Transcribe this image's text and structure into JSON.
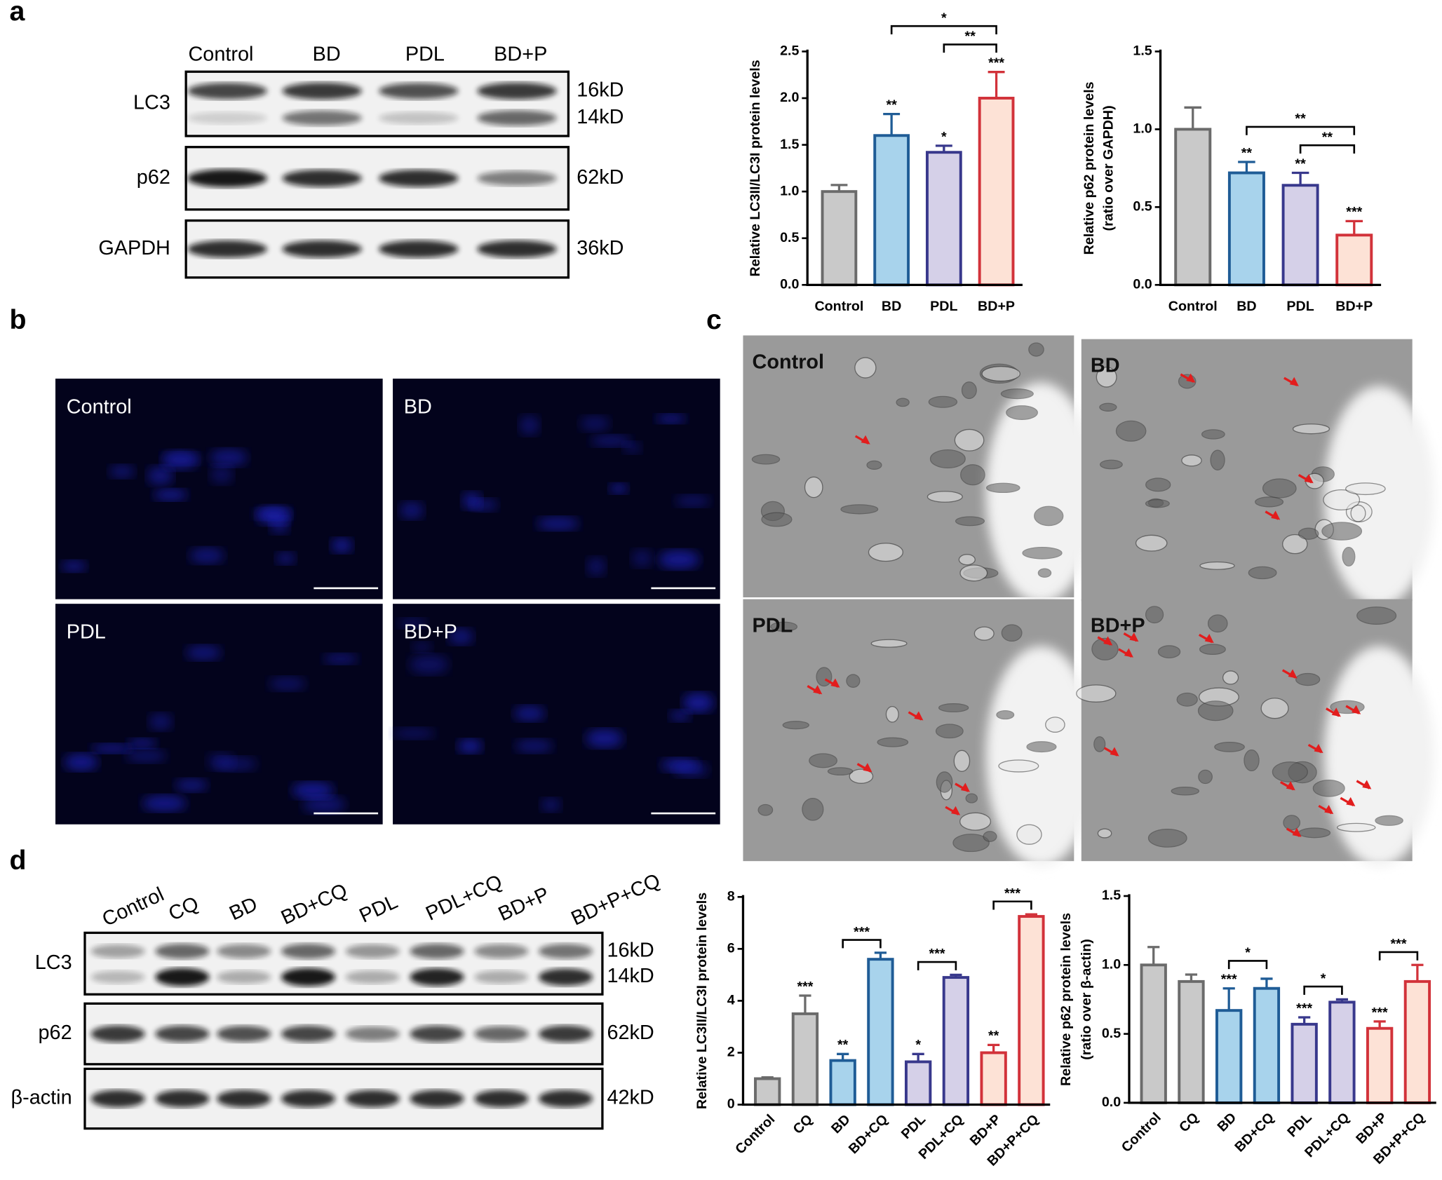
{
  "panels": {
    "a": {
      "label": "a",
      "lanes": [
        "Control",
        "BD",
        "PDL",
        "BD+P"
      ],
      "rows": [
        {
          "name": "LC3",
          "sizes": [
            "16kD",
            "14kD"
          ]
        },
        {
          "name": "p62",
          "sizes": [
            "62kD"
          ]
        },
        {
          "name": "GAPDH",
          "sizes": [
            "36kD"
          ]
        }
      ]
    },
    "b": {
      "label": "b",
      "images": [
        "Control",
        "BD",
        "PDL",
        "BD+P"
      ]
    },
    "c": {
      "label": "c",
      "images": [
        "Control",
        "BD",
        "PDL",
        "BD+P"
      ]
    },
    "d": {
      "label": "d",
      "lanes": [
        "Control",
        "CQ",
        "BD",
        "BD+CQ",
        "PDL",
        "PDL+CQ",
        "BD+P",
        "BD+P+CQ"
      ],
      "rows": [
        {
          "name": "LC3",
          "sizes": [
            "16kD",
            "14kD"
          ]
        },
        {
          "name": "p62",
          "sizes": [
            "62kD"
          ]
        },
        {
          "name": "β-actin",
          "sizes": [
            "42kD"
          ]
        }
      ]
    }
  },
  "chart_data": [
    {
      "type": "bar",
      "ylabel": [
        "Relative LC3II/LC3I protein levels"
      ],
      "categories": [
        "Control",
        "BD",
        "PDL",
        "BD+P"
      ],
      "values": [
        1.0,
        1.6,
        1.42,
        2.0
      ],
      "errors": [
        0.07,
        0.23,
        0.07,
        0.28
      ],
      "stars": [
        null,
        "**",
        "*",
        "***"
      ],
      "brackets": [
        {
          "between": [
            "PDL",
            "BD+P"
          ],
          "label": "**"
        },
        {
          "between": [
            "BD",
            "BD+P"
          ],
          "label": "*"
        }
      ],
      "colors": [
        "#c9c9c9",
        "#a8d3ec",
        "#d5d0e8",
        "#fde2d6"
      ],
      "edge_colors": [
        "#6b6b6b",
        "#1f5c96",
        "#38388c",
        "#d2323a"
      ],
      "ylim": [
        0,
        2.5
      ],
      "yticks": [
        {
          "value": 0,
          "label": "0.0"
        },
        0.5,
        {
          "value": 1,
          "label": "1.0"
        },
        1.5,
        {
          "value": 2,
          "label": "2.0"
        },
        2.5
      ],
      "xtick_rotation": 0
    },
    {
      "type": "bar",
      "ylabel": [
        "Relative p62 protein levels",
        "(ratio over GAPDH)"
      ],
      "categories": [
        "Control",
        "BD",
        "PDL",
        "BD+P"
      ],
      "values": [
        1.0,
        0.72,
        0.64,
        0.32
      ],
      "errors": [
        0.14,
        0.07,
        0.08,
        0.09
      ],
      "stars": [
        null,
        "**",
        "**",
        "***"
      ],
      "brackets": [
        {
          "between": [
            "PDL",
            "BD+P"
          ],
          "label": "**"
        },
        {
          "between": [
            "BD",
            "BD+P"
          ],
          "label": "**"
        }
      ],
      "colors": [
        "#c9c9c9",
        "#a8d3ec",
        "#d5d0e8",
        "#fde2d6"
      ],
      "edge_colors": [
        "#6b6b6b",
        "#1f5c96",
        "#38388c",
        "#d2323a"
      ],
      "ylim": [
        0,
        1.5
      ],
      "yticks": [
        {
          "value": 0,
          "label": "0.0"
        },
        0.5,
        {
          "value": 1,
          "label": "1.0"
        },
        1.5
      ],
      "xtick_rotation": 0
    },
    {
      "type": "bar",
      "ylabel": [
        "Relative LC3II/LC3I protein levels"
      ],
      "categories": [
        "Control",
        "CQ",
        "BD",
        "BD+CQ",
        "PDL",
        "PDL+CQ",
        "BD+P",
        "BD+P+CQ"
      ],
      "values": [
        1.0,
        3.5,
        1.7,
        5.6,
        1.65,
        4.9,
        2.0,
        7.25
      ],
      "errors": [
        0.05,
        0.7,
        0.25,
        0.25,
        0.3,
        0.1,
        0.3,
        0.08
      ],
      "stars": [
        null,
        "***",
        "**",
        null,
        "*",
        null,
        "**",
        null
      ],
      "brackets": [
        {
          "between": [
            "BD",
            "BD+CQ"
          ],
          "label": "***"
        },
        {
          "between": [
            "PDL",
            "PDL+CQ"
          ],
          "label": "***"
        },
        {
          "between": [
            "BD+P",
            "BD+P+CQ"
          ],
          "label": "***"
        }
      ],
      "colors": [
        "#c9c9c9",
        "#c9c9c9",
        "#a8d3ec",
        "#a8d3ec",
        "#d5d0e8",
        "#d5d0e8",
        "#fde2d6",
        "#fde2d6"
      ],
      "edge_colors": [
        "#6b6b6b",
        "#6b6b6b",
        "#1f5c96",
        "#1f5c96",
        "#38388c",
        "#38388c",
        "#d2323a",
        "#d2323a"
      ],
      "ylim": [
        0,
        8
      ],
      "yticks": [
        0,
        2,
        4,
        6,
        8
      ],
      "xtick_rotation": 45
    },
    {
      "type": "bar",
      "ylabel": [
        "Relative p62 protein levels",
        "(ratio over β-actin)"
      ],
      "categories": [
        "Control",
        "CQ",
        "BD",
        "BD+CQ",
        "PDL",
        "PDL+CQ",
        "BD+P",
        "BD+P+CQ"
      ],
      "values": [
        1.0,
        0.88,
        0.67,
        0.83,
        0.57,
        0.73,
        0.54,
        0.88
      ],
      "errors": [
        0.13,
        0.05,
        0.16,
        0.07,
        0.05,
        0.02,
        0.05,
        0.12
      ],
      "stars": [
        null,
        null,
        "***",
        null,
        "***",
        null,
        "***",
        null
      ],
      "brackets": [
        {
          "between": [
            "BD",
            "BD+CQ"
          ],
          "label": "*"
        },
        {
          "between": [
            "PDL",
            "PDL+CQ"
          ],
          "label": "*"
        },
        {
          "between": [
            "BD+P",
            "BD+P+CQ"
          ],
          "label": "***"
        }
      ],
      "colors": [
        "#c9c9c9",
        "#c9c9c9",
        "#a8d3ec",
        "#a8d3ec",
        "#d5d0e8",
        "#d5d0e8",
        "#fde2d6",
        "#fde2d6"
      ],
      "edge_colors": [
        "#6b6b6b",
        "#6b6b6b",
        "#1f5c96",
        "#1f5c96",
        "#38388c",
        "#38388c",
        "#d2323a",
        "#d2323a"
      ],
      "ylim": [
        0,
        1.5
      ],
      "yticks": [
        {
          "value": 0,
          "label": "0.0"
        },
        0.5,
        {
          "value": 1,
          "label": "1.0"
        },
        1.5
      ],
      "xtick_rotation": 45
    }
  ]
}
